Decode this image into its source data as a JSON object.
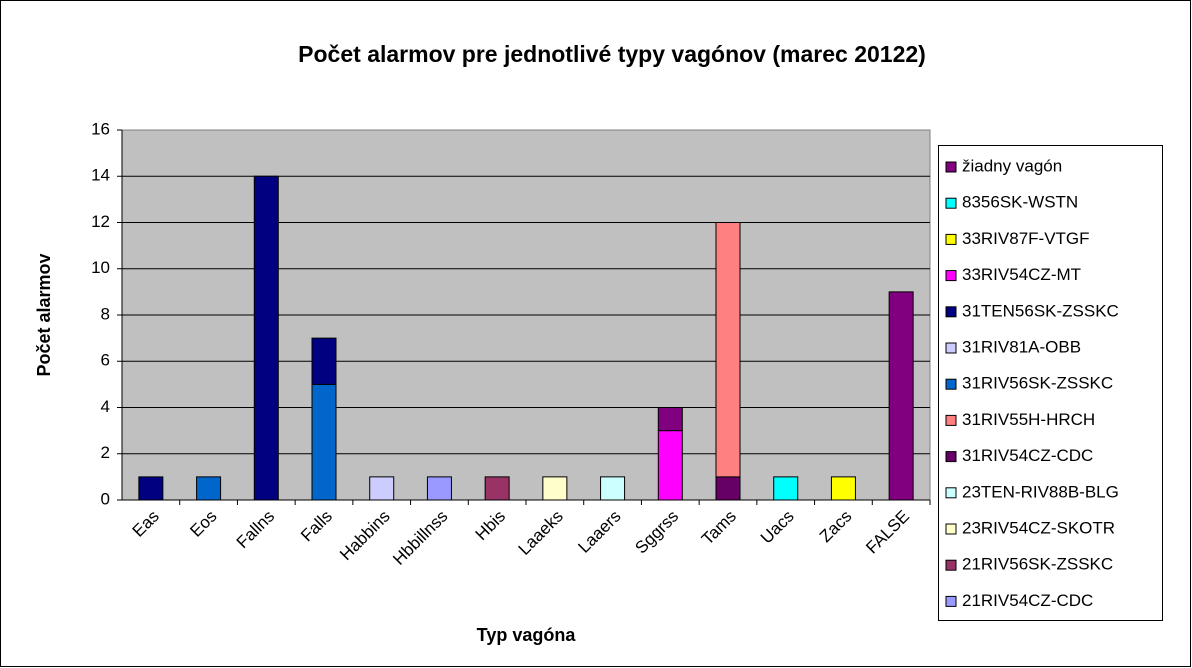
{
  "chart_data": {
    "type": "bar",
    "stacked": true,
    "title": "Počet alarmov pre jednotlivé typy vagónov (marec 20122)",
    "xlabel": "Typ vagóna",
    "ylabel": "Počet alarmov",
    "categories": [
      "Eas",
      "Eos",
      "Fallns",
      "Falls",
      "Habbins",
      "Hbbillnss",
      "Hbis",
      "Laaeks",
      "Laaers",
      "Sggrss",
      "Tams",
      "Uacs",
      "Zacs",
      "FALSE"
    ],
    "ylim": [
      0,
      16
    ],
    "yticks": [
      0,
      2,
      4,
      6,
      8,
      10,
      12,
      14,
      16
    ],
    "grid": true,
    "legend": "right",
    "series": [
      {
        "name": "žiadny vagón",
        "color": "#800080",
        "values": [
          0,
          0,
          0,
          0,
          0,
          0,
          0,
          0,
          0,
          1,
          0,
          0,
          0,
          9
        ]
      },
      {
        "name": "8356SK-WSTN",
        "color": "#00ffff",
        "values": [
          0,
          0,
          0,
          0,
          0,
          0,
          0,
          0,
          0,
          0,
          0,
          1,
          0,
          0
        ]
      },
      {
        "name": "33RIV87F-VTGF",
        "color": "#ffff00",
        "values": [
          0,
          0,
          0,
          0,
          0,
          0,
          0,
          0,
          0,
          0,
          0,
          0,
          1,
          0
        ]
      },
      {
        "name": "33RIV54CZ-MT",
        "color": "#ff00ff",
        "values": [
          0,
          0,
          0,
          0,
          0,
          0,
          0,
          0,
          0,
          3,
          0,
          0,
          0,
          0
        ]
      },
      {
        "name": "31TEN56SK-ZSSKC",
        "color": "#000080",
        "values": [
          1,
          0,
          14,
          2,
          0,
          0,
          0,
          0,
          0,
          0,
          0,
          0,
          0,
          0
        ]
      },
      {
        "name": "31RIV81A-OBB",
        "color": "#ccccff",
        "values": [
          0,
          0,
          0,
          0,
          1,
          0,
          0,
          0,
          0,
          0,
          0,
          0,
          0,
          0
        ]
      },
      {
        "name": "31RIV56SK-ZSSKC",
        "color": "#0066cc",
        "values": [
          0,
          1,
          0,
          5,
          0,
          0,
          0,
          0,
          0,
          0,
          0,
          0,
          0,
          0
        ]
      },
      {
        "name": "31RIV55H-HRCH",
        "color": "#ff8080",
        "values": [
          0,
          0,
          0,
          0,
          0,
          0,
          0,
          0,
          0,
          0,
          11,
          0,
          0,
          0
        ]
      },
      {
        "name": "31RIV54CZ-CDC",
        "color": "#660066",
        "values": [
          0,
          0,
          0,
          0,
          0,
          0,
          0,
          0,
          0,
          0,
          1,
          0,
          0,
          0
        ]
      },
      {
        "name": "23TEN-RIV88B-BLG",
        "color": "#ccffff",
        "values": [
          0,
          0,
          0,
          0,
          0,
          0,
          0,
          0,
          1,
          0,
          0,
          0,
          0,
          0
        ]
      },
      {
        "name": "23RIV54CZ-SKOTR",
        "color": "#ffffcc",
        "values": [
          0,
          0,
          0,
          0,
          0,
          0,
          0,
          1,
          0,
          0,
          0,
          0,
          0,
          0
        ]
      },
      {
        "name": "21RIV56SK-ZSSKC",
        "color": "#993366",
        "values": [
          0,
          0,
          0,
          0,
          0,
          0,
          1,
          0,
          0,
          0,
          0,
          0,
          0,
          0
        ]
      },
      {
        "name": "21RIV54CZ-CDC",
        "color": "#9999ff",
        "values": [
          0,
          0,
          0,
          0,
          0,
          1,
          0,
          0,
          0,
          0,
          0,
          0,
          0,
          0
        ]
      }
    ]
  }
}
